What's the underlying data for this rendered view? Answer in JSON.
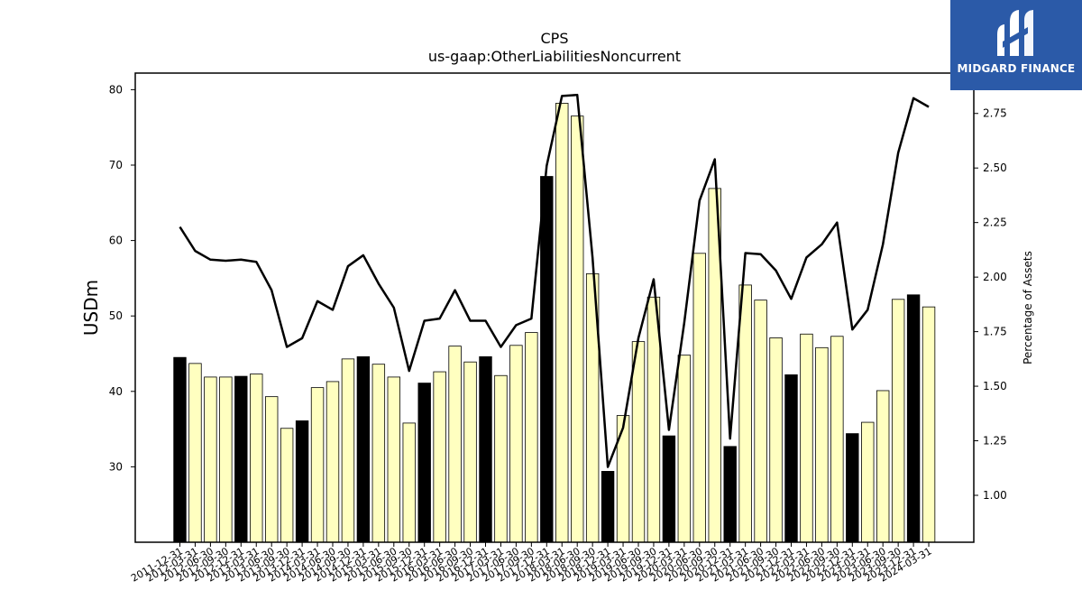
{
  "chart_data": {
    "type": "bar+line",
    "title": "CPS",
    "subtitle": "us-gaap:OtherLiabilitiesNoncurrent",
    "ylabel": "USDm",
    "y2label": "Percentage of Assets",
    "ylim": [
      20,
      82.2
    ],
    "y2lim": [
      0.785,
      2.935
    ],
    "yticks": [
      30,
      40,
      50,
      60,
      70,
      80
    ],
    "y2ticks": [
      "1.00",
      "1.25",
      "1.50",
      "1.75",
      "2.00",
      "2.25",
      "2.50",
      "2.75"
    ],
    "categories": [
      "2011-12-31",
      "2012-03-31",
      "2012-06-30",
      "2012-09-30",
      "2012-12-31",
      "2013-03-31",
      "2013-06-30",
      "2013-09-30",
      "2013-12-31",
      "2014-03-31",
      "2014-06-30",
      "2014-09-30",
      "2014-12-31",
      "2015-03-31",
      "2015-06-30",
      "2015-09-30",
      "2015-12-31",
      "2016-03-31",
      "2016-06-30",
      "2016-09-30",
      "2016-12-31",
      "2017-03-31",
      "2017-06-30",
      "2017-09-30",
      "2017-12-31",
      "2018-03-31",
      "2018-06-30",
      "2018-09-30",
      "2018-12-31",
      "2019-03-31",
      "2019-06-30",
      "2019-09-30",
      "2019-12-31",
      "2020-03-31",
      "2020-06-30",
      "2020-09-30",
      "2020-12-31",
      "2021-03-31",
      "2021-06-30",
      "2021-09-30",
      "2021-12-31",
      "2022-03-31",
      "2022-06-30",
      "2022-09-30",
      "2022-12-31",
      "2023-03-31",
      "2023-06-30",
      "2023-09-30",
      "2023-12-31",
      "2024-03-31"
    ],
    "xtick_labels": [
      "2011-12-31",
      "2012-03-31",
      "2012-06-30",
      "2012-09-30",
      "2012-12-31",
      "2013-03-31",
      "2013-06-30",
      "2013-09-30",
      "2013-12-31",
      "2014-03-31",
      "2014-06-30",
      "2014-09-30",
      "2014-12-31",
      "2015-03-31",
      "2015-06-30",
      "2015-09-30",
      "2015-12-31",
      "2016-03-31",
      "2016-06-30",
      "2016-09-30",
      "2016-12-31",
      "2017-03-31",
      "2017-06-30",
      "2017-09-30",
      "2017-12-31",
      "2018-03-31",
      "2018-06-30",
      "2018-09-30",
      "2018-12-31",
      "2019-03-31",
      "2019-06-30",
      "2019-09-30",
      "2019-12-31",
      "2020-03-31",
      "2020-06-30",
      "2020-09-30",
      "2020-12-31",
      "2021-03-31",
      "2021-06-30",
      "2021-09-30",
      "2021-12-31",
      "2022-03-31",
      "2022-06-30",
      "2022-09-30",
      "2022-12-31",
      "2023-03-31",
      "2023-06-30",
      "2023-09-30",
      "2023-12-31",
      "2024-03-31"
    ],
    "series": [
      {
        "type": "bar",
        "axis": "left",
        "values": [
          44.5,
          43.7,
          41.9,
          41.9,
          42.0,
          42.3,
          39.3,
          35.1,
          36.1,
          40.5,
          41.3,
          44.3,
          44.6,
          43.6,
          41.9,
          35.8,
          41.1,
          42.6,
          46.0,
          43.9,
          44.6,
          42.1,
          46.1,
          47.8,
          68.5,
          78.2,
          76.5,
          55.6,
          29.4,
          36.8,
          46.6,
          52.5,
          34.1,
          44.8,
          58.3,
          66.9,
          32.7,
          54.1,
          52.1,
          47.1,
          42.2,
          47.6,
          45.8,
          47.3,
          34.4,
          35.9,
          40.1,
          52.2,
          52.8,
          51.2
        ],
        "year_end_color": "#000000",
        "color": "#ffffc0"
      },
      {
        "type": "line",
        "axis": "right",
        "color": "#000000",
        "values": [
          2.23,
          2.12,
          2.08,
          2.075,
          2.08,
          2.07,
          1.94,
          1.68,
          1.72,
          1.89,
          1.85,
          2.05,
          2.1,
          1.97,
          1.86,
          1.57,
          1.8,
          1.81,
          1.94,
          1.8,
          1.8,
          1.68,
          1.78,
          1.81,
          2.51,
          2.83,
          2.835,
          2.09,
          1.13,
          1.31,
          1.72,
          1.99,
          1.3,
          1.79,
          2.35,
          2.54,
          1.26,
          2.11,
          2.105,
          2.03,
          1.9,
          2.09,
          2.15,
          2.25,
          1.76,
          1.85,
          2.15,
          2.57,
          2.82,
          2.78
        ]
      }
    ]
  },
  "logo": {
    "text": "MIDGARD FINANCE"
  }
}
